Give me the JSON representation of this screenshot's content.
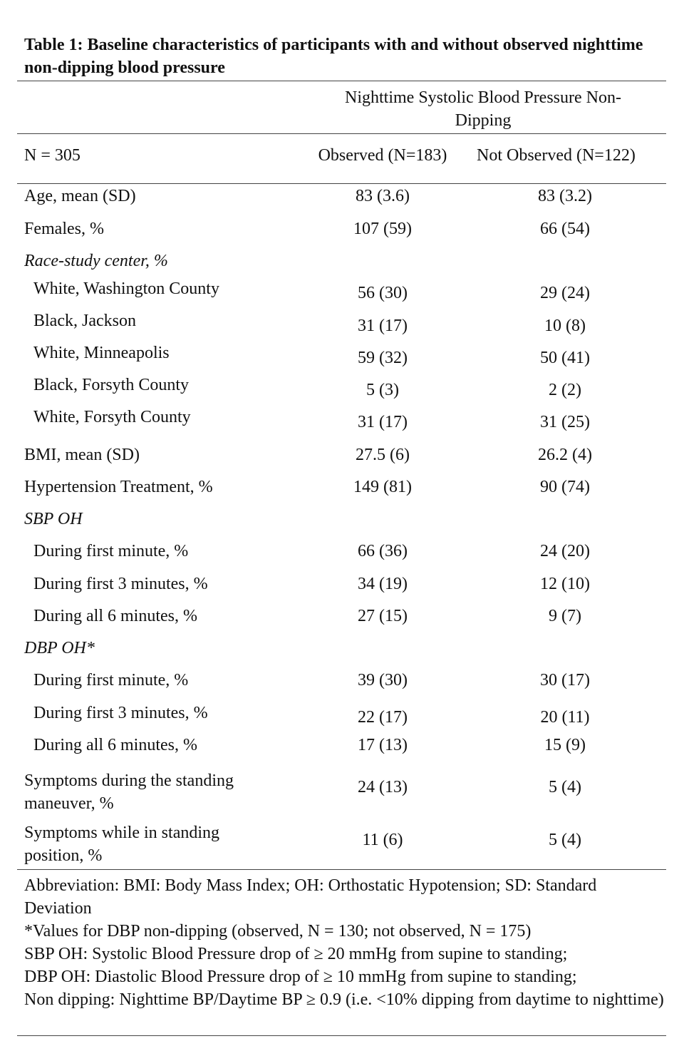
{
  "title": "Table 1: Baseline characteristics of participants with and without observed nighttime non-dipping blood pressure",
  "header": {
    "group": "Nighttime Systolic Blood Pressure Non-Dipping",
    "columns": [
      "N = 305",
      "Observed (N=183)",
      "Not Observed (N=122)"
    ]
  },
  "rows": [
    {
      "label": "Age, mean (SD)",
      "observed": "83 (3.6)",
      "not_observed": "83 (3.2)"
    },
    {
      "label": "Females, %",
      "observed": "107 (59)",
      "not_observed": "66 (54)"
    },
    {
      "section": "Race-study center, %",
      "items": [
        {
          "label": "White, Washington County",
          "observed": "56 (30)",
          "not_observed": "29 (24)"
        },
        {
          "label": "Black, Jackson",
          "observed": "31 (17)",
          "not_observed": "10 (8)"
        },
        {
          "label": "White, Minneapolis",
          "observed": "59 (32)",
          "not_observed": "50 (41)"
        },
        {
          "label": "Black, Forsyth County",
          "observed": "5 (3)",
          "not_observed": "2 (2)"
        },
        {
          "label": "White, Forsyth County",
          "observed": "31 (17)",
          "not_observed": "31 (25)"
        }
      ]
    },
    {
      "label": "BMI, mean (SD)",
      "observed": "27.5 (6)",
      "not_observed": "26.2 (4)"
    },
    {
      "label": "Hypertension Treatment, %",
      "observed": "149 (81)",
      "not_observed": "90 (74)"
    },
    {
      "section": "SBP OH",
      "items": [
        {
          "label": "During first minute, %",
          "observed": "66 (36)",
          "not_observed": "24 (20)"
        },
        {
          "label": "During first 3 minutes, %",
          "observed": "34 (19)",
          "not_observed": "12 (10)"
        },
        {
          "label": "During all 6 minutes, %",
          "observed": "27 (15)",
          "not_observed": "9 (7)"
        }
      ]
    },
    {
      "section": "DBP OH*",
      "items": [
        {
          "label": "During first minute, %",
          "observed": "39 (30)",
          "not_observed": "30 (17)"
        },
        {
          "label": "During first 3 minutes, %",
          "observed": "22 (17)",
          "not_observed": "20 (11)"
        },
        {
          "label": "During all 6 minutes, %",
          "observed": "17 (13)",
          "not_observed": "15 (9)"
        }
      ]
    },
    {
      "label": "Symptoms during the standing maneuver, %",
      "observed": "24 (13)",
      "not_observed": "5 (4)"
    },
    {
      "label": "Symptoms while in standing position, %",
      "observed": "11 (6)",
      "not_observed": "5 (4)"
    }
  ],
  "notes": [
    "Abbreviation: BMI: Body Mass Index; OH: Orthostatic Hypotension; SD: Standard Deviation",
    "*Values for DBP non-dipping (observed, N = 130; not observed, N = 175)",
    "SBP OH: Systolic Blood Pressure drop of ≥ 20 mmHg from supine to standing;",
    "DBP OH: Diastolic Blood Pressure drop of ≥ 10 mmHg from supine to standing;",
    "Non dipping: Nighttime BP/Daytime BP ≥ 0.9 (i.e. <10% dipping from daytime to nighttime)"
  ]
}
